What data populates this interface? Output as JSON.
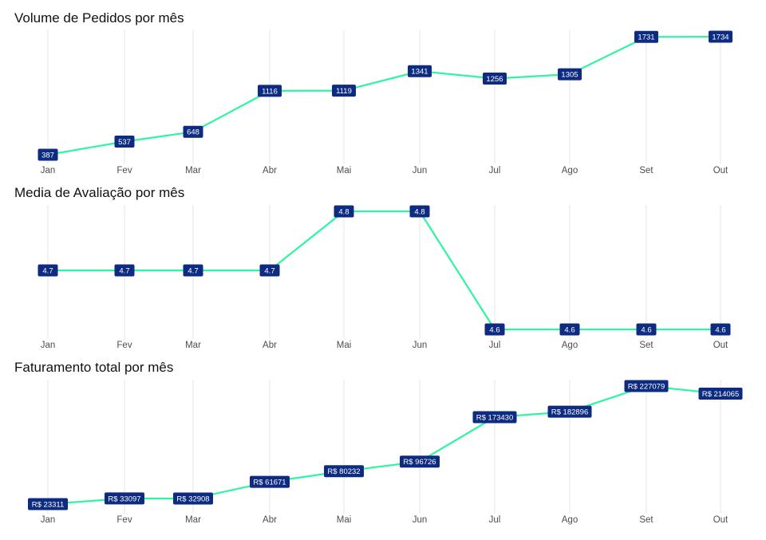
{
  "colors": {
    "line": "#2ef5a0",
    "label_bg": "#0d2b80",
    "label_text": "#ffffff",
    "grid": "#e6e6e6",
    "title": "#111111",
    "tick": "#4d4d4d"
  },
  "chart_data": [
    {
      "type": "line",
      "title": "Volume de Pedidos por mês",
      "xlabel": "",
      "ylabel": "",
      "categories": [
        "Jan",
        "Fev",
        "Mar",
        "Abr",
        "Mai",
        "Jun",
        "Jul",
        "Ago",
        "Set",
        "Out"
      ],
      "values": [
        387,
        537,
        648,
        1116,
        1119,
        1341,
        1256,
        1305,
        1731,
        1734
      ],
      "labels": [
        "387",
        "537",
        "648",
        "1116",
        "1119",
        "1341",
        "1256",
        "1305",
        "1731",
        "1734"
      ],
      "ylim": [
        387,
        1734
      ],
      "grid": "vertical",
      "legend": "none"
    },
    {
      "type": "line",
      "title": "Media de Avaliação por mês",
      "xlabel": "",
      "ylabel": "",
      "categories": [
        "Jan",
        "Fev",
        "Mar",
        "Abr",
        "Mai",
        "Jun",
        "Jul",
        "Ago",
        "Set",
        "Out"
      ],
      "values": [
        4.7,
        4.7,
        4.7,
        4.7,
        4.8,
        4.8,
        4.6,
        4.6,
        4.6,
        4.6
      ],
      "labels": [
        "4.7",
        "4.7",
        "4.7",
        "4.7",
        "4.8",
        "4.8",
        "4.6",
        "4.6",
        "4.6",
        "4.6"
      ],
      "ylim": [
        4.6,
        4.8
      ],
      "grid": "vertical",
      "legend": "none"
    },
    {
      "type": "line",
      "title": "Faturamento total por mês",
      "xlabel": "",
      "ylabel": "",
      "categories": [
        "Jan",
        "Fev",
        "Mar",
        "Abr",
        "Mai",
        "Jun",
        "Jul",
        "Ago",
        "Set",
        "Out"
      ],
      "values": [
        23311,
        33097,
        32908,
        61671,
        80232,
        96726,
        173430,
        182896,
        227079,
        214065
      ],
      "labels": [
        "R$ 23311",
        "R$ 33097",
        "R$ 32908",
        "R$ 61671",
        "R$ 80232",
        "R$ 96726",
        "R$ 173430",
        "R$ 182896",
        "R$ 227079",
        "R$ 214065"
      ],
      "ylim": [
        23311,
        227079
      ],
      "grid": "vertical",
      "legend": "none"
    }
  ]
}
